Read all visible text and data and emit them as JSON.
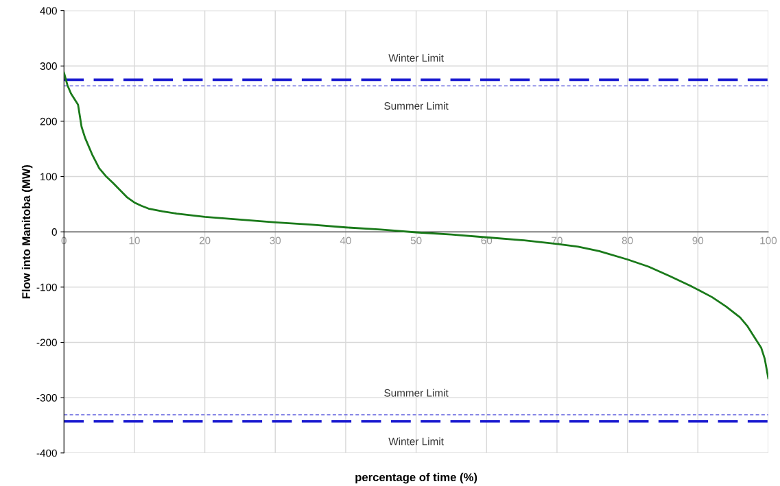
{
  "chart_data": {
    "type": "line",
    "xlabel": "percentage of time (%)",
    "ylabel": "Flow into Manitoba (MW)",
    "xlim": [
      0,
      100
    ],
    "xticks": [
      0,
      10,
      20,
      30,
      40,
      50,
      60,
      70,
      80,
      90,
      100
    ],
    "ylim": [
      -400,
      400
    ],
    "yticks": [
      -400,
      -300,
      -200,
      -100,
      0,
      100,
      200,
      300,
      400
    ],
    "grid": true,
    "legend": false,
    "x": [
      0,
      0.5,
      1,
      2,
      2.5,
      3,
      4,
      5,
      6,
      7,
      8,
      9,
      10,
      11,
      12,
      14,
      16,
      20,
      25,
      30,
      35,
      40,
      45,
      50,
      55,
      60,
      65,
      70,
      73,
      76,
      80,
      83,
      86,
      89,
      92,
      94,
      96,
      97,
      98,
      99,
      99.5,
      100
    ],
    "series": [
      {
        "color": "#1a7a1a",
        "values": [
          288,
          265,
          250,
          230,
          190,
          170,
          140,
          115,
          100,
          88,
          75,
          62,
          53,
          47,
          42,
          37,
          33,
          27,
          22,
          17,
          13,
          8,
          4,
          -1,
          -5,
          -10,
          -15,
          -22,
          -27,
          -35,
          -50,
          -63,
          -80,
          -98,
          -118,
          -135,
          -155,
          -170,
          -190,
          -210,
          -230,
          -265
        ]
      }
    ],
    "ref_lines": [
      {
        "axis": "y",
        "value": 275,
        "label": "Winter Limit",
        "color": "#1a1ad0",
        "line_style": "dashed"
      },
      {
        "axis": "y",
        "value": 264,
        "label": "Summer Limit",
        "color": "#6a6ae0",
        "line_style": "dotted"
      },
      {
        "axis": "y",
        "value": -331,
        "label": "Summer Limit",
        "color": "#6a6ae0",
        "line_style": "dotted"
      },
      {
        "axis": "y",
        "value": -343,
        "label": "Winter Limit",
        "color": "#1a1ad0",
        "line_style": "dashed"
      }
    ]
  }
}
